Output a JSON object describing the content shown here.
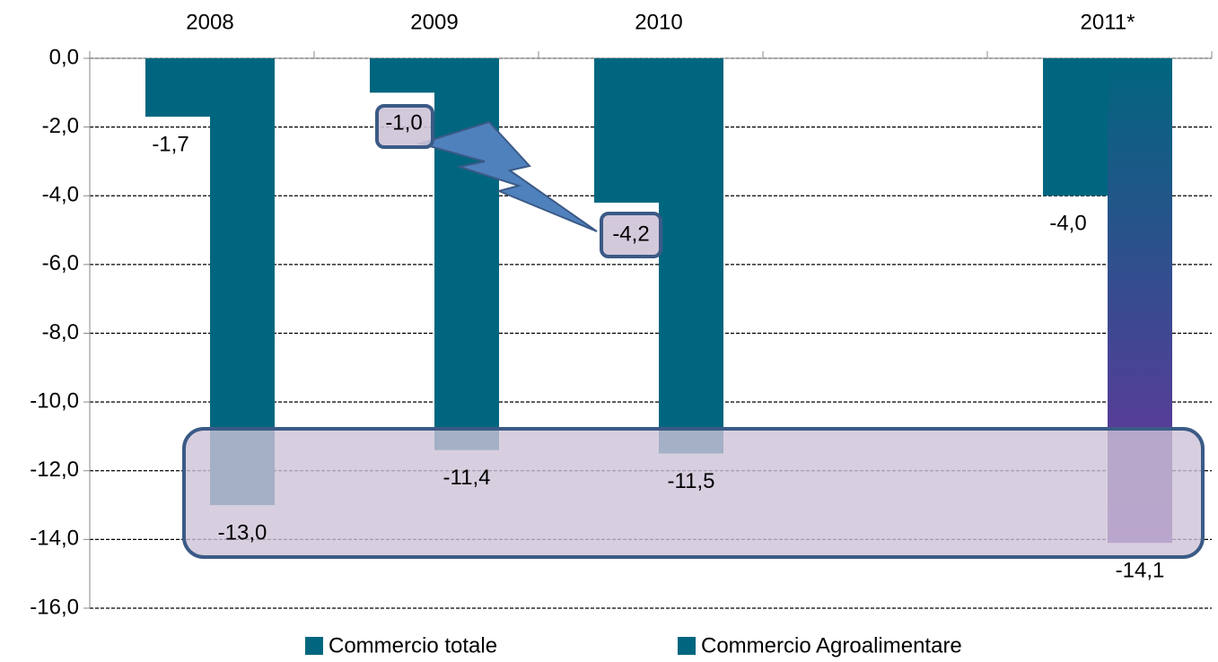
{
  "chart_data": {
    "type": "bar",
    "categories": [
      "2008",
      "2009",
      "2010",
      null,
      "2011*"
    ],
    "series": [
      {
        "name": "Commercio totale",
        "color": "#00667f",
        "values": [
          -1.7,
          -1.0,
          -4.2,
          null,
          -4.0
        ],
        "value_labels": [
          "-1,7",
          "-1,0",
          "-4,2",
          null,
          "-4,0"
        ]
      },
      {
        "name": "Commercio Agroalimentare",
        "color": "#00667f",
        "values": [
          -13.0,
          -11.4,
          -11.5,
          null,
          -14.1
        ],
        "value_labels": [
          "-13,0",
          "-11,4",
          "-11,5",
          null,
          "-14,1"
        ]
      }
    ],
    "ylim": [
      -16,
      0
    ],
    "yticks": [
      {
        "value": 0,
        "label": "0,0"
      },
      {
        "value": -2,
        "label": "-2,0"
      },
      {
        "value": -4,
        "label": "-4,0"
      },
      {
        "value": -6,
        "label": "-6,0"
      },
      {
        "value": -8,
        "label": "-8,0"
      },
      {
        "value": -10,
        "label": "-10,0"
      },
      {
        "value": -12,
        "label": "-12,0"
      },
      {
        "value": -14,
        "label": "-14,0"
      },
      {
        "value": -16,
        "label": "-16,0"
      }
    ],
    "grid": true,
    "legend": "bottom"
  }
}
